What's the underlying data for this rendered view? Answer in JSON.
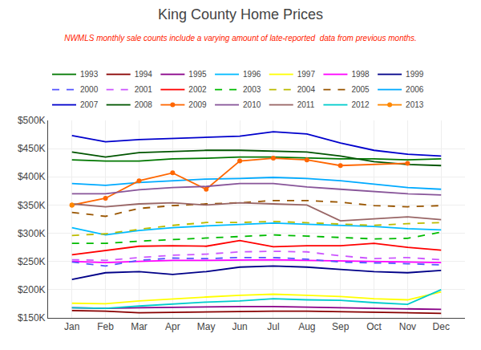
{
  "chart_data": {
    "type": "line",
    "title": "King County Home Prices",
    "subtitle": "NWMLS monthly sale counts include a varying amount of late-reported  data from previous months.",
    "categories": [
      "Jan",
      "Feb",
      "Mar",
      "Apr",
      "May",
      "Jun",
      "Jul",
      "Aug",
      "Sep",
      "Oct",
      "Nov",
      "Dec"
    ],
    "series": [
      {
        "name": "1993",
        "color": "#007700",
        "line_style": "solid",
        "values": [
          430000,
          428000,
          428000,
          432000,
          433000,
          435000,
          435000,
          433000,
          432000,
          432000,
          430000,
          432000
        ]
      },
      {
        "name": "1994",
        "color": "#880000",
        "line_style": "solid",
        "values": [
          163000,
          162000,
          159000,
          160000,
          161000,
          162000,
          162000,
          162000,
          161000,
          161000,
          160000,
          158000
        ]
      },
      {
        "name": "1995",
        "color": "#880088",
        "line_style": "solid",
        "values": [
          168000,
          167000,
          168000,
          169000,
          170000,
          170000,
          170000,
          169000,
          168000,
          167000,
          166000,
          165000
        ]
      },
      {
        "name": "1996",
        "color": "#00bbff",
        "line_style": "solid",
        "values": [
          310000,
          297000,
          305000,
          310000,
          313000,
          316000,
          318000,
          316000,
          314000,
          312000,
          308000,
          306000
        ]
      },
      {
        "name": "1997",
        "color": "#ffff00",
        "line_style": "solid",
        "values": [
          176000,
          175000,
          180000,
          184000,
          187000,
          190000,
          192000,
          190000,
          188000,
          184000,
          182000,
          196000
        ]
      },
      {
        "name": "1998",
        "color": "#ff00ff",
        "line_style": "solid",
        "values": [
          250000,
          248000,
          250000,
          252000,
          252000,
          253000,
          253000,
          252000,
          251000,
          250000,
          249000,
          248000
        ]
      },
      {
        "name": "1999",
        "color": "#000088",
        "line_style": "solid",
        "values": [
          218000,
          230000,
          232000,
          227000,
          232000,
          240000,
          242000,
          240000,
          236000,
          232000,
          230000,
          234000
        ]
      },
      {
        "name": "2000",
        "color": "#5555ff",
        "line_style": "dashed",
        "values": [
          249000,
          242000,
          252000,
          256000,
          255000,
          257000,
          257000,
          254000,
          249000,
          248000,
          246000,
          244000
        ]
      },
      {
        "name": "2001",
        "color": "#cc55ff",
        "line_style": "dashed",
        "values": [
          253000,
          252000,
          257000,
          261000,
          263000,
          267000,
          268000,
          267000,
          260000,
          255000,
          257000,
          253000
        ]
      },
      {
        "name": "2002",
        "color": "#ff0000",
        "line_style": "solid",
        "values": [
          262000,
          270000,
          277000,
          278000,
          277000,
          287000,
          276000,
          278000,
          278000,
          282000,
          275000,
          270000
        ]
      },
      {
        "name": "2003",
        "color": "#00bb00",
        "line_style": "dashed",
        "values": [
          282000,
          282000,
          286000,
          289000,
          292000,
          295000,
          297000,
          295000,
          293000,
          290000,
          291000,
          302000
        ]
      },
      {
        "name": "2004",
        "color": "#bbbb00",
        "line_style": "dashed",
        "values": [
          296000,
          299000,
          307000,
          314000,
          319000,
          319000,
          321000,
          319000,
          317000,
          314000,
          317000,
          319000
        ]
      },
      {
        "name": "2005",
        "color": "#995500",
        "line_style": "dashed",
        "values": [
          337000,
          330000,
          344000,
          349000,
          352000,
          354000,
          358000,
          358000,
          355000,
          349000,
          347000,
          349000
        ]
      },
      {
        "name": "2006",
        "color": "#00aaff",
        "line_style": "solid",
        "values": [
          388000,
          385000,
          390000,
          393000,
          396000,
          397000,
          399000,
          397000,
          393000,
          387000,
          381000,
          378000
        ]
      },
      {
        "name": "2007",
        "color": "#0000cc",
        "line_style": "solid",
        "values": [
          473000,
          462000,
          466000,
          468000,
          470000,
          472000,
          480000,
          476000,
          460000,
          447000,
          440000,
          437000
        ]
      },
      {
        "name": "2008",
        "color": "#005500",
        "line_style": "solid",
        "values": [
          444000,
          435000,
          443000,
          445000,
          447000,
          447000,
          445000,
          444000,
          437000,
          427000,
          422000,
          420000
        ]
      },
      {
        "name": "2009",
        "color": "#ff6600",
        "line_style": "solid",
        "marker": "circle",
        "values": [
          350000,
          362000,
          393000,
          407000,
          378000,
          428000,
          433000,
          430000,
          420000,
          null,
          424000,
          null
        ]
      },
      {
        "name": "2010",
        "color": "#885599",
        "line_style": "solid",
        "values": [
          370000,
          370000,
          377000,
          381000,
          383000,
          388000,
          388000,
          382000,
          378000,
          374000,
          370000,
          368000
        ]
      },
      {
        "name": "2011",
        "color": "#996666",
        "line_style": "solid",
        "values": [
          352000,
          347000,
          352000,
          354000,
          350000,
          354000,
          352000,
          350000,
          322000,
          325000,
          329000,
          324000
        ]
      },
      {
        "name": "2012",
        "color": "#00cccc",
        "line_style": "solid",
        "values": [
          168000,
          167000,
          171000,
          175000,
          178000,
          180000,
          184000,
          182000,
          181000,
          177000,
          174000,
          200000
        ]
      },
      {
        "name": "2013",
        "color": "#ff8800",
        "line_style": "solid",
        "marker": "circle",
        "values": [
          350000,
          null,
          null,
          null,
          null,
          null,
          null,
          null,
          null,
          null,
          null,
          null
        ]
      }
    ],
    "ylim": [
      150000,
      500000
    ],
    "yticks": [
      {
        "value": 150000,
        "label": "$150K"
      },
      {
        "value": 200000,
        "label": "$200K"
      },
      {
        "value": 250000,
        "label": "$250K"
      },
      {
        "value": 300000,
        "label": "$300K"
      },
      {
        "value": 350000,
        "label": "$350K"
      },
      {
        "value": 400000,
        "label": "$400K"
      },
      {
        "value": 450000,
        "label": "$450K"
      },
      {
        "value": 500000,
        "label": "$500K"
      }
    ],
    "grid": true,
    "legend": "top left"
  }
}
